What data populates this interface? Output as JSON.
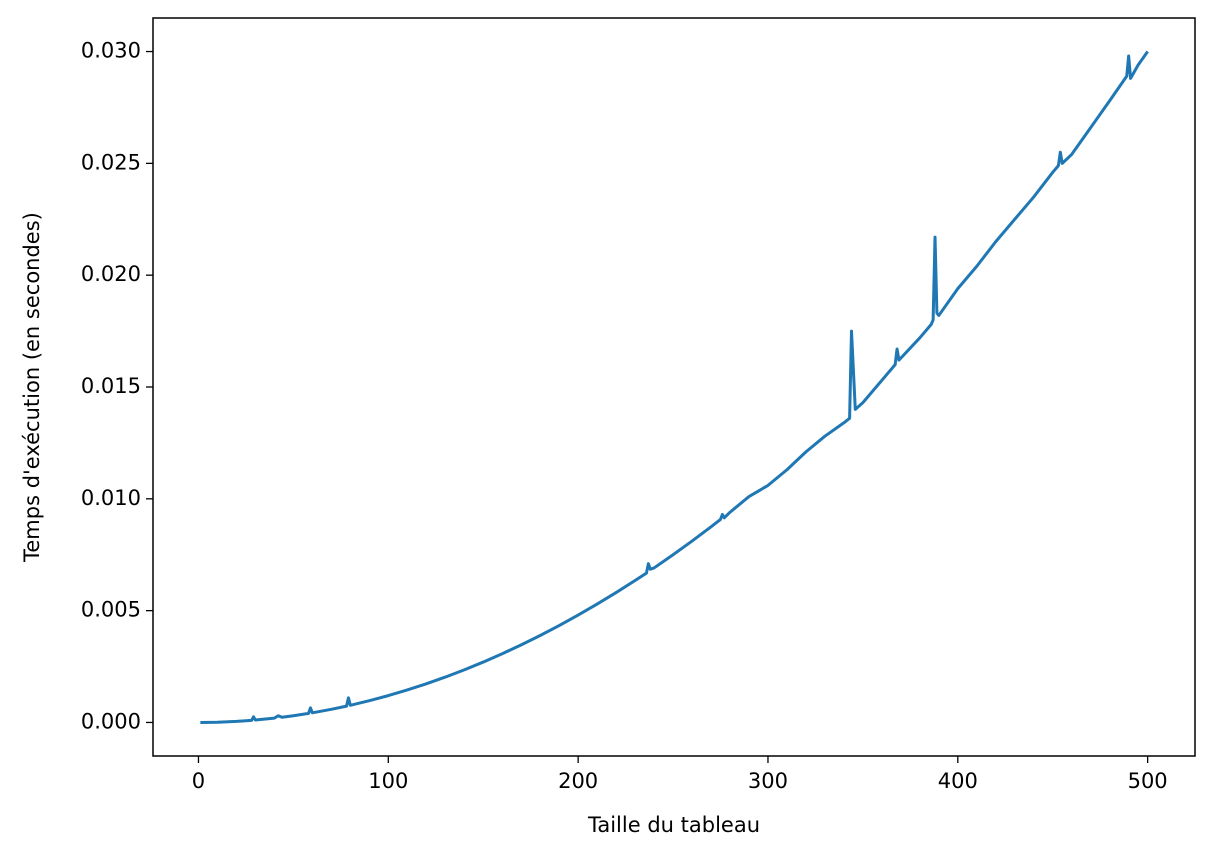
{
  "chart_data": {
    "type": "line",
    "xlabel": "Taille du tableau",
    "ylabel": "Temps d'exécution (en secondes)",
    "x": [
      1,
      10,
      20,
      28,
      29,
      30,
      40,
      42,
      44,
      50,
      58,
      59,
      60,
      70,
      78,
      79,
      80,
      90,
      100,
      110,
      120,
      130,
      140,
      150,
      160,
      170,
      180,
      190,
      200,
      210,
      220,
      230,
      236,
      237,
      238,
      240,
      250,
      260,
      270,
      275,
      276,
      277,
      280,
      290,
      300,
      310,
      320,
      330,
      340,
      343,
      344,
      346,
      350,
      360,
      367,
      368,
      369,
      380,
      386,
      387,
      388,
      389,
      390,
      400,
      410,
      420,
      430,
      440,
      450,
      453,
      454,
      455,
      460,
      470,
      480,
      489,
      490,
      491,
      495,
      500
    ],
    "series": [
      {
        "color": "#1f77b4",
        "values": [
          0.0,
          1.2e-05,
          4.8e-05,
          9.4e-05,
          0.00025,
          0.000108,
          0.000192,
          0.0003,
          0.000232,
          0.0003,
          0.000404,
          0.00065,
          0.000432,
          0.000588,
          0.00073,
          0.0011,
          0.000768,
          0.000972,
          0.0012,
          0.001452,
          0.001728,
          0.002028,
          0.002352,
          0.0027,
          0.003072,
          0.003468,
          0.003888,
          0.004332,
          0.0048,
          0.005292,
          0.005808,
          0.006348,
          0.00668,
          0.0071,
          0.00685,
          0.00691,
          0.0075,
          0.00811,
          0.00875,
          0.00908,
          0.0093,
          0.00915,
          0.0094,
          0.0101,
          0.0106,
          0.0113,
          0.0121,
          0.0128,
          0.0134,
          0.0136,
          0.0175,
          0.014,
          0.0143,
          0.0153,
          0.016,
          0.0167,
          0.0162,
          0.0172,
          0.0178,
          0.018,
          0.0217,
          0.0183,
          0.0182,
          0.0194,
          0.0204,
          0.0215,
          0.0225,
          0.0235,
          0.0246,
          0.0249,
          0.0255,
          0.025,
          0.0254,
          0.0266,
          0.0278,
          0.0289,
          0.0298,
          0.0288,
          0.0294,
          0.03
        ]
      }
    ],
    "xlim": [
      -23.95,
      524.95
    ],
    "ylim": [
      -0.0015,
      0.0315
    ],
    "xticks": [
      0,
      100,
      200,
      300,
      400,
      500
    ],
    "yticks": [
      {
        "value": 0,
        "label": "0.000"
      },
      0.005,
      {
        "value": 0.01,
        "label": "0.010"
      },
      0.015,
      {
        "value": 0.02,
        "label": "0.020"
      },
      0.025,
      {
        "value": 0.03,
        "label": "0.030"
      }
    ]
  }
}
